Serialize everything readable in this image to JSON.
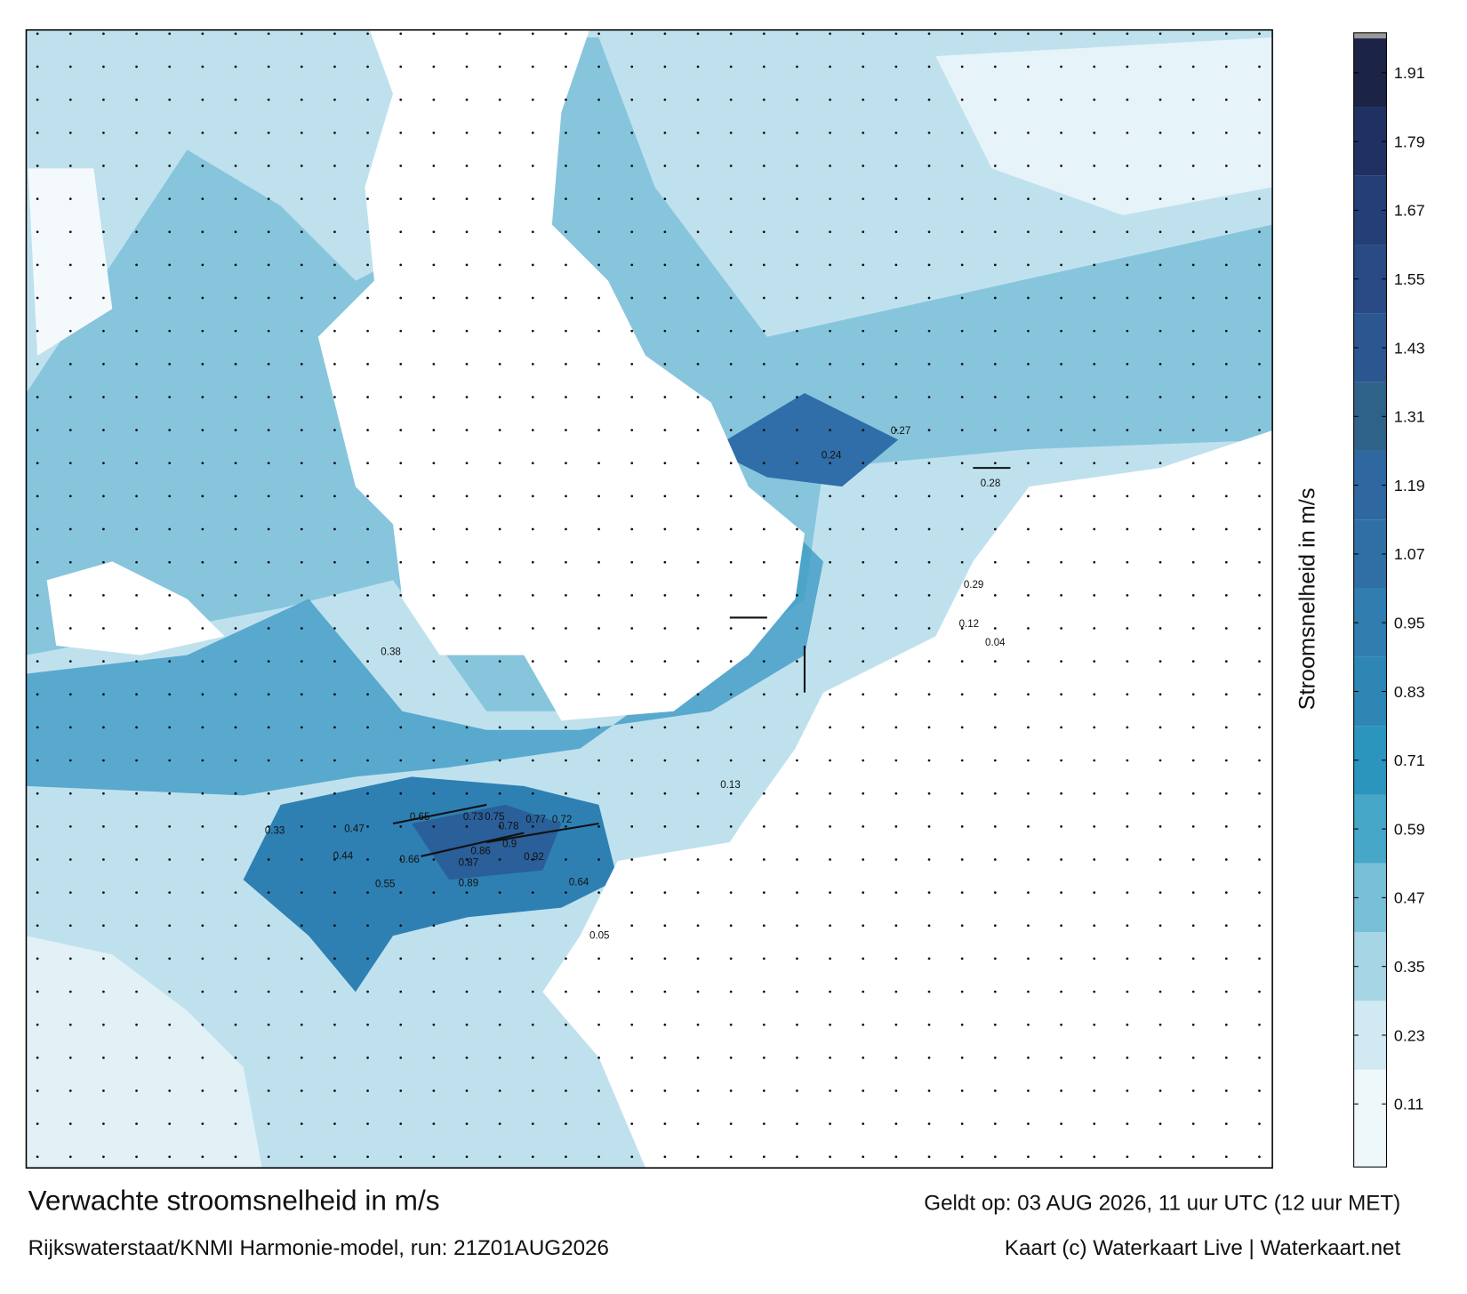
{
  "chart_data": {
    "type": "current-map",
    "title": "Verwachte stroomsnelheid in m/s",
    "subtitle": "Rijkswaterstaat/KNMI Harmonie-model, run: 21Z01AUG2026",
    "valid_time": "Geldt op: 03 AUG 2026, 11 uur UTC (12 uur MET)",
    "credit": "Kaart (c) Waterkaart Live | Waterkaart.net",
    "colorbar": {
      "label": "Stroomsnelheid in m/s",
      "ylim": [
        0,
        1.97
      ],
      "yticks": [
        0.11,
        0.23,
        0.35,
        0.47,
        0.59,
        0.71,
        0.83,
        0.95,
        1.07,
        1.19,
        1.31,
        1.43,
        1.55,
        1.67,
        1.79,
        1.91
      ],
      "colors": [
        "#eef7fa",
        "#d0e9f2",
        "#a6d5e6",
        "#78c0d8",
        "#46a7c8",
        "#2b95bd",
        "#2d86b4",
        "#2f7eaf",
        "#306fa4",
        "#2f68a0",
        "#2f6288",
        "#2c5690",
        "#294a84",
        "#243e76",
        "#1f3163",
        "#1b2447"
      ]
    },
    "map_labels": [
      0.73,
      0.75,
      0.78,
      0.77,
      0.72,
      0.9,
      0.92,
      0.86,
      0.87,
      0.89,
      0.65,
      0.66,
      0.64,
      0.55,
      0.47,
      0.33,
      0.44,
      0.38,
      0.28,
      0.27,
      0.12,
      0.05,
      0.04,
      0.29,
      0.24,
      0.13
    ]
  }
}
